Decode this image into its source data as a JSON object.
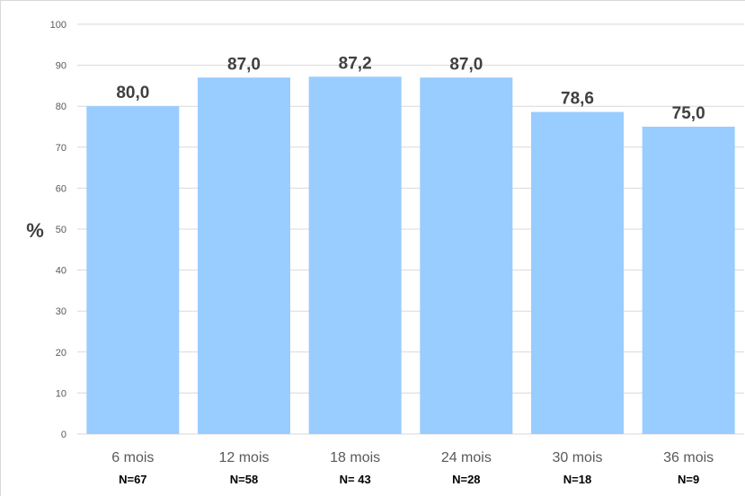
{
  "chart_data": {
    "type": "bar",
    "title": "",
    "xlabel": "",
    "ylabel": "%",
    "ylim": [
      0,
      100
    ],
    "yticks": [
      0,
      10,
      20,
      30,
      40,
      50,
      60,
      70,
      80,
      90,
      100
    ],
    "grid": true,
    "categories": [
      "6 mois",
      "12 mois",
      "18 mois",
      "24 mois",
      "30 mois",
      "36 mois"
    ],
    "sample_sizes": [
      "N=67",
      "N=58",
      "N= 43",
      "N=28",
      "N=18",
      "N=9"
    ],
    "values": [
      80.0,
      87.0,
      87.2,
      87.0,
      78.6,
      75.0
    ],
    "value_labels": [
      "80,0",
      "87,0",
      "87,2",
      "87,0",
      "78,6",
      "75,0"
    ],
    "colors": {
      "bar": "#99CCFF",
      "grid": "#D9D9D9",
      "axis_text": "#595959",
      "value_text": "#404040"
    }
  }
}
